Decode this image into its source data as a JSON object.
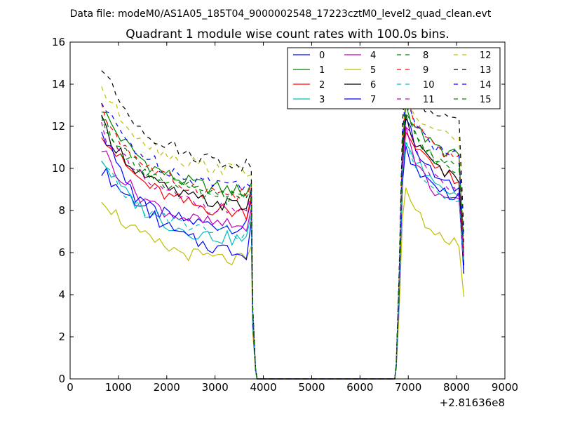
{
  "chart_data": {
    "type": "line",
    "suptitle": "Data file: modeM0/AS1A05_185T04_9000002548_17223cztM0_level2_quad_clean.evt",
    "title": "Quadrant 1 module wise count rates with 100.0s bins.",
    "xlabel": "",
    "ylabel": "",
    "x_offset_label": "+2.81636e8",
    "xlim": [
      0,
      9000
    ],
    "ylim": [
      0,
      16
    ],
    "x_ticks": [
      0,
      1000,
      2000,
      3000,
      4000,
      5000,
      6000,
      7000,
      8000,
      9000
    ],
    "y_ticks": [
      0,
      2,
      4,
      6,
      8,
      10,
      12,
      14,
      16
    ],
    "legend_position": "top-right",
    "legend_columns": 4,
    "segments": [
      {
        "x_start": 650,
        "x_step": 100,
        "x_end": 3750
      },
      {
        "x_start": 6950,
        "x_step": 100,
        "x_end": 8150
      }
    ],
    "gap_profile": {
      "x": [
        3750,
        3780,
        3840,
        3870,
        6720,
        6750,
        6810,
        6880,
        6950
      ],
      "factor": [
        1.0,
        0.35,
        0.05,
        0.0,
        0.0,
        0.05,
        0.35,
        0.85,
        1.0
      ]
    },
    "series": [
      {
        "name": "0",
        "color": "#0000ff",
        "dash": "solid",
        "seg1": {
          "start": 10.0,
          "end": 7.2,
          "last": 8.5
        },
        "seg2": {
          "start": 12.5,
          "end": 9.0,
          "last": 5.0
        }
      },
      {
        "name": "1",
        "color": "#008000",
        "dash": "solid",
        "seg1": {
          "start": 12.9,
          "end": 8.9,
          "last": 9.3
        },
        "seg2": {
          "start": 13.0,
          "end": 10.6,
          "last": 6.0
        }
      },
      {
        "name": "2",
        "color": "#ff0000",
        "dash": "solid",
        "seg1": {
          "start": 11.8,
          "end": 7.9,
          "last": 8.7
        },
        "seg2": {
          "start": 12.0,
          "end": 9.5,
          "last": 5.6
        }
      },
      {
        "name": "3",
        "color": "#00bfbf",
        "dash": "solid",
        "seg1": {
          "start": 10.5,
          "end": 6.6,
          "last": 7.8
        },
        "seg2": {
          "start": 11.5,
          "end": 8.8,
          "last": 5.4
        }
      },
      {
        "name": "4",
        "color": "#bf00bf",
        "dash": "solid",
        "seg1": {
          "start": 11.0,
          "end": 7.2,
          "last": 8.1
        },
        "seg2": {
          "start": 11.8,
          "end": 8.3,
          "last": 5.2
        }
      },
      {
        "name": "5",
        "color": "#bfbf00",
        "dash": "solid",
        "seg1": {
          "start": 8.7,
          "end": 5.6,
          "last": 6.3
        },
        "seg2": {
          "start": 9.0,
          "end": 6.5,
          "last": 3.9
        }
      },
      {
        "name": "6",
        "color": "#000000",
        "dash": "solid",
        "seg1": {
          "start": 12.2,
          "end": 8.2,
          "last": 9.0
        },
        "seg2": {
          "start": 12.4,
          "end": 9.6,
          "last": 5.4
        }
      },
      {
        "name": "7",
        "color": "#0000ff",
        "dash": "solid",
        "seg1": {
          "start": 12.0,
          "end": 6.0,
          "last": 7.5
        },
        "seg2": {
          "start": 11.0,
          "end": 8.7,
          "last": 5.0
        }
      },
      {
        "name": "8",
        "color": "#008000",
        "dash": "dashed",
        "seg1": {
          "start": 12.4,
          "end": 8.5,
          "last": 9.0
        },
        "seg2": {
          "start": 12.8,
          "end": 10.0,
          "last": 6.2
        }
      },
      {
        "name": "9",
        "color": "#ff0000",
        "dash": "dashed",
        "seg1": {
          "start": 12.8,
          "end": 8.7,
          "last": 9.2
        },
        "seg2": {
          "start": 13.2,
          "end": 10.5,
          "last": 5.8
        }
      },
      {
        "name": "10",
        "color": "#00bfbf",
        "dash": "dashed",
        "seg1": {
          "start": 10.2,
          "end": 6.9,
          "last": 7.5
        },
        "seg2": {
          "start": 11.6,
          "end": 8.3,
          "last": 5.5
        }
      },
      {
        "name": "11",
        "color": "#bf00bf",
        "dash": "dashed",
        "seg1": {
          "start": 12.0,
          "end": 8.0,
          "last": 8.8
        },
        "seg2": {
          "start": 12.2,
          "end": 8.8,
          "last": 5.6
        }
      },
      {
        "name": "12",
        "color": "#bfbf00",
        "dash": "dashed",
        "seg1": {
          "start": 13.9,
          "end": 9.9,
          "last": 9.7
        },
        "seg2": {
          "start": 13.5,
          "end": 11.5,
          "last": 6.5
        }
      },
      {
        "name": "13",
        "color": "#000000",
        "dash": "dashed",
        "seg1": {
          "start": 14.8,
          "end": 10.2,
          "last": 10.0
        },
        "seg2": {
          "start": 14.4,
          "end": 12.1,
          "last": 7.0
        }
      },
      {
        "name": "14",
        "color": "#0000ff",
        "dash": "dashed",
        "seg1": {
          "start": 13.1,
          "end": 9.2,
          "last": 9.1
        },
        "seg2": {
          "start": 13.6,
          "end": 10.5,
          "last": 6.5
        }
      },
      {
        "name": "15",
        "color": "#008000",
        "dash": "dashed",
        "seg1": {
          "start": 12.4,
          "end": 8.6,
          "last": 8.9
        },
        "seg2": {
          "start": 13.0,
          "end": 9.8,
          "last": 6.8
        }
      }
    ]
  }
}
